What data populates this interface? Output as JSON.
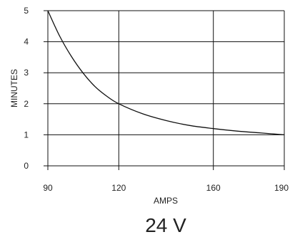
{
  "chart_data": {
    "type": "line",
    "xlabel": "AMPS",
    "ylabel": "MINUTES",
    "caption": "24 V",
    "xlim": [
      90,
      190
    ],
    "ylim": [
      0,
      5
    ],
    "x_ticks": [
      90,
      120,
      160,
      190
    ],
    "y_ticks": [
      0,
      1,
      2,
      3,
      4,
      5
    ],
    "grid": true,
    "series": [
      {
        "x": [
          90,
          95,
          100,
          105,
          110,
          115,
          120,
          130,
          140,
          150,
          160,
          170,
          180,
          190
        ],
        "y": [
          5.0,
          4.18,
          3.52,
          2.98,
          2.55,
          2.24,
          2.0,
          1.68,
          1.46,
          1.3,
          1.2,
          1.12,
          1.06,
          1.0
        ]
      }
    ]
  }
}
